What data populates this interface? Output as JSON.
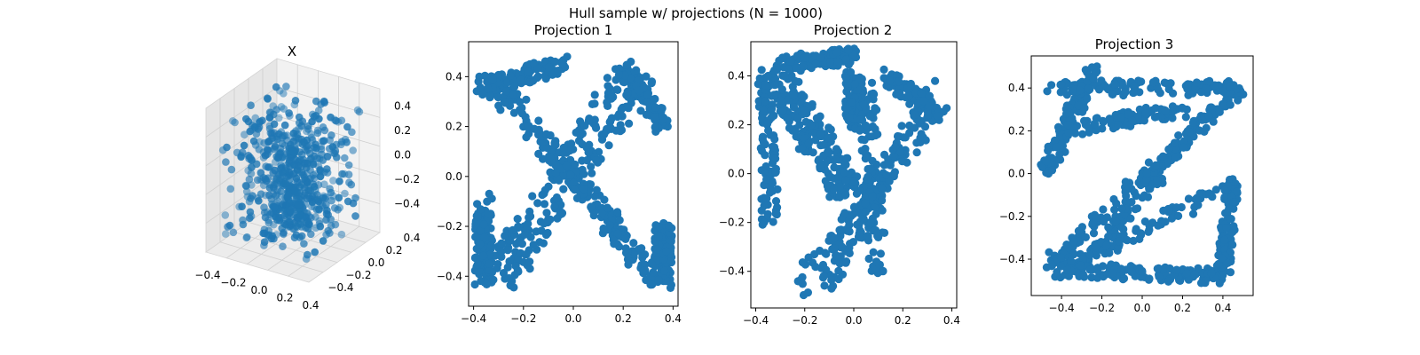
{
  "figure": {
    "suptitle": "Hull sample w/ projections (N = 1000)"
  },
  "chart_data": [
    {
      "type": "scatter3d",
      "title": "X",
      "marker_color": "#1f77b4",
      "xticks": [
        "−0.4",
        "−0.2",
        "0.0",
        "0.2",
        "0.4"
      ],
      "yticks": [
        "−0.4",
        "−0.2",
        "0.0",
        "0.2",
        "0.4"
      ],
      "zticks": [
        "−0.4",
        "−0.2",
        "0.0",
        "0.2",
        "0.4"
      ],
      "xlim": [
        -0.5,
        0.5
      ],
      "ylim": [
        -0.5,
        0.5
      ],
      "zlim": [
        -0.5,
        0.5
      ]
    },
    {
      "type": "scatter",
      "title": "Projection 1",
      "marker_color": "#1f77b4",
      "xlim": [
        -0.42,
        0.42
      ],
      "ylim": [
        -0.52,
        0.54
      ],
      "xticks": [
        -0.4,
        -0.2,
        0.0,
        0.2,
        0.4
      ],
      "yticks": [
        -0.4,
        -0.2,
        0.0,
        0.2,
        0.4
      ],
      "xtick_labels": [
        "−0.4",
        "−0.2",
        "0.0",
        "0.2",
        "0.4"
      ],
      "ytick_labels": [
        "−0.4",
        "−0.2",
        "0.0",
        "0.2",
        "0.4"
      ],
      "shape": "X"
    },
    {
      "type": "scatter",
      "title": "Projection 2",
      "marker_color": "#1f77b4",
      "xlim": [
        -0.42,
        0.42
      ],
      "ylim": [
        -0.55,
        0.54
      ],
      "xticks": [
        -0.4,
        -0.2,
        0.0,
        0.2,
        0.4
      ],
      "yticks": [
        -0.4,
        -0.2,
        0.0,
        0.2,
        0.4
      ],
      "xtick_labels": [
        "−0.4",
        "−0.2",
        "0.0",
        "0.2",
        "0.4"
      ],
      "ytick_labels": [
        "−0.4",
        "−0.2",
        "0.0",
        "0.2",
        "0.4"
      ],
      "shape": "Y"
    },
    {
      "type": "scatter",
      "title": "Projection 3",
      "marker_color": "#1f77b4",
      "xlim": [
        -0.55,
        0.55
      ],
      "ylim": [
        -0.57,
        0.55
      ],
      "xticks": [
        -0.4,
        -0.2,
        0.0,
        0.2,
        0.4
      ],
      "yticks": [
        -0.4,
        -0.2,
        0.0,
        0.2,
        0.4
      ],
      "xtick_labels": [
        "−0.4",
        "−0.2",
        "0.0",
        "0.2",
        "0.4"
      ],
      "ytick_labels": [
        "−0.4",
        "−0.2",
        "0.0",
        "0.2",
        "0.4"
      ],
      "shape": "Z"
    }
  ]
}
